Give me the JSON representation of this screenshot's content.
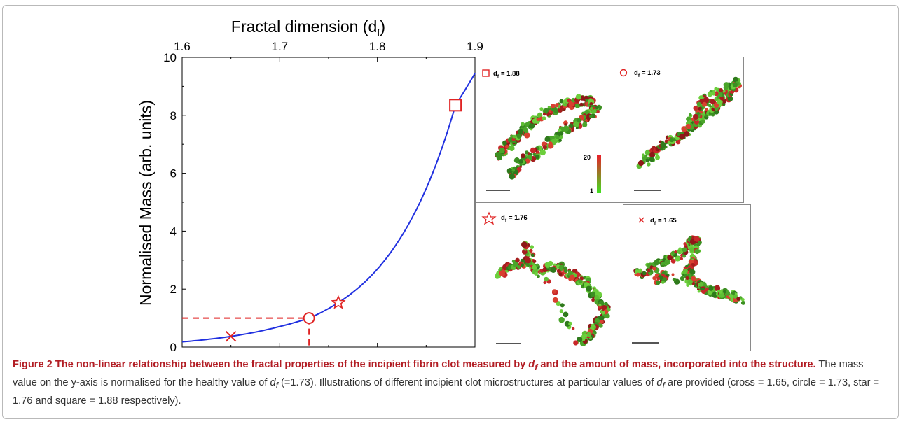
{
  "colors": {
    "curve": "#2030e0",
    "marker": "#e02424",
    "guide": "#e02424",
    "caption_bold": "#b21d24"
  },
  "chart_data": {
    "type": "line",
    "title": "",
    "xlabel_top": "Fractal dimension (d",
    "xlabel_top_sub": "f",
    "xlabel_top_close": ")",
    "ylabel": "Normalised Mass (arb. units)",
    "xlim": [
      1.6,
      1.9
    ],
    "ylim": [
      0,
      10
    ],
    "x_ticks": [
      "1.6",
      "1.7",
      "1.8",
      "1.9"
    ],
    "y_ticks": [
      "0",
      "2",
      "4",
      "6",
      "8",
      "10"
    ],
    "series": [
      {
        "x": [
          1.6,
          1.63,
          1.65,
          1.68,
          1.7,
          1.73,
          1.76,
          1.8,
          1.84,
          1.88,
          1.9
        ],
        "y": [
          0.18,
          0.28,
          0.37,
          0.55,
          0.71,
          1.0,
          1.53,
          2.69,
          4.75,
          8.35,
          9.45
        ]
      }
    ],
    "markers": [
      {
        "shape": "cross",
        "x": 1.65,
        "y": 0.37
      },
      {
        "shape": "circle",
        "x": 1.73,
        "y": 1.0
      },
      {
        "shape": "star",
        "x": 1.76,
        "y": 1.53
      },
      {
        "shape": "square",
        "x": 1.88,
        "y": 8.35
      }
    ],
    "reference": {
      "x": 1.73,
      "y": 1.0
    }
  },
  "panels": [
    {
      "symbol": "square",
      "label": "d",
      "sub": "f",
      "value": "= 1.88",
      "colorbar_max": "20",
      "colorbar_min": "1"
    },
    {
      "symbol": "circle",
      "label": "d",
      "sub": "f",
      "value": "= 1.73"
    },
    {
      "symbol": "star",
      "label": "d",
      "sub": "f",
      "value": "= 1.76"
    },
    {
      "symbol": "cross",
      "label": "d",
      "sub": "f",
      "value": "= 1.65"
    }
  ],
  "caption": {
    "bold_1": "Figure 2 The non-linear relationship between the fractal properties of the incipient fibrin clot measured by ",
    "bold_var": "d",
    "bold_sub": "f",
    "bold_2": " and the amount of mass, incorporated into the structure.",
    "text_1": " The mass value on the y-axis is normalised for the healthy value of ",
    "var1": "d",
    "sub1": "f",
    "text_2": " (=1.73). Illustrations of different incipient clot microstructures at particular values of ",
    "var2": "d",
    "sub2": "f",
    "text_3": " are provided (cross = 1.65, circle = 1.73, star = 1.76 and square = 1.88 respectively)."
  }
}
